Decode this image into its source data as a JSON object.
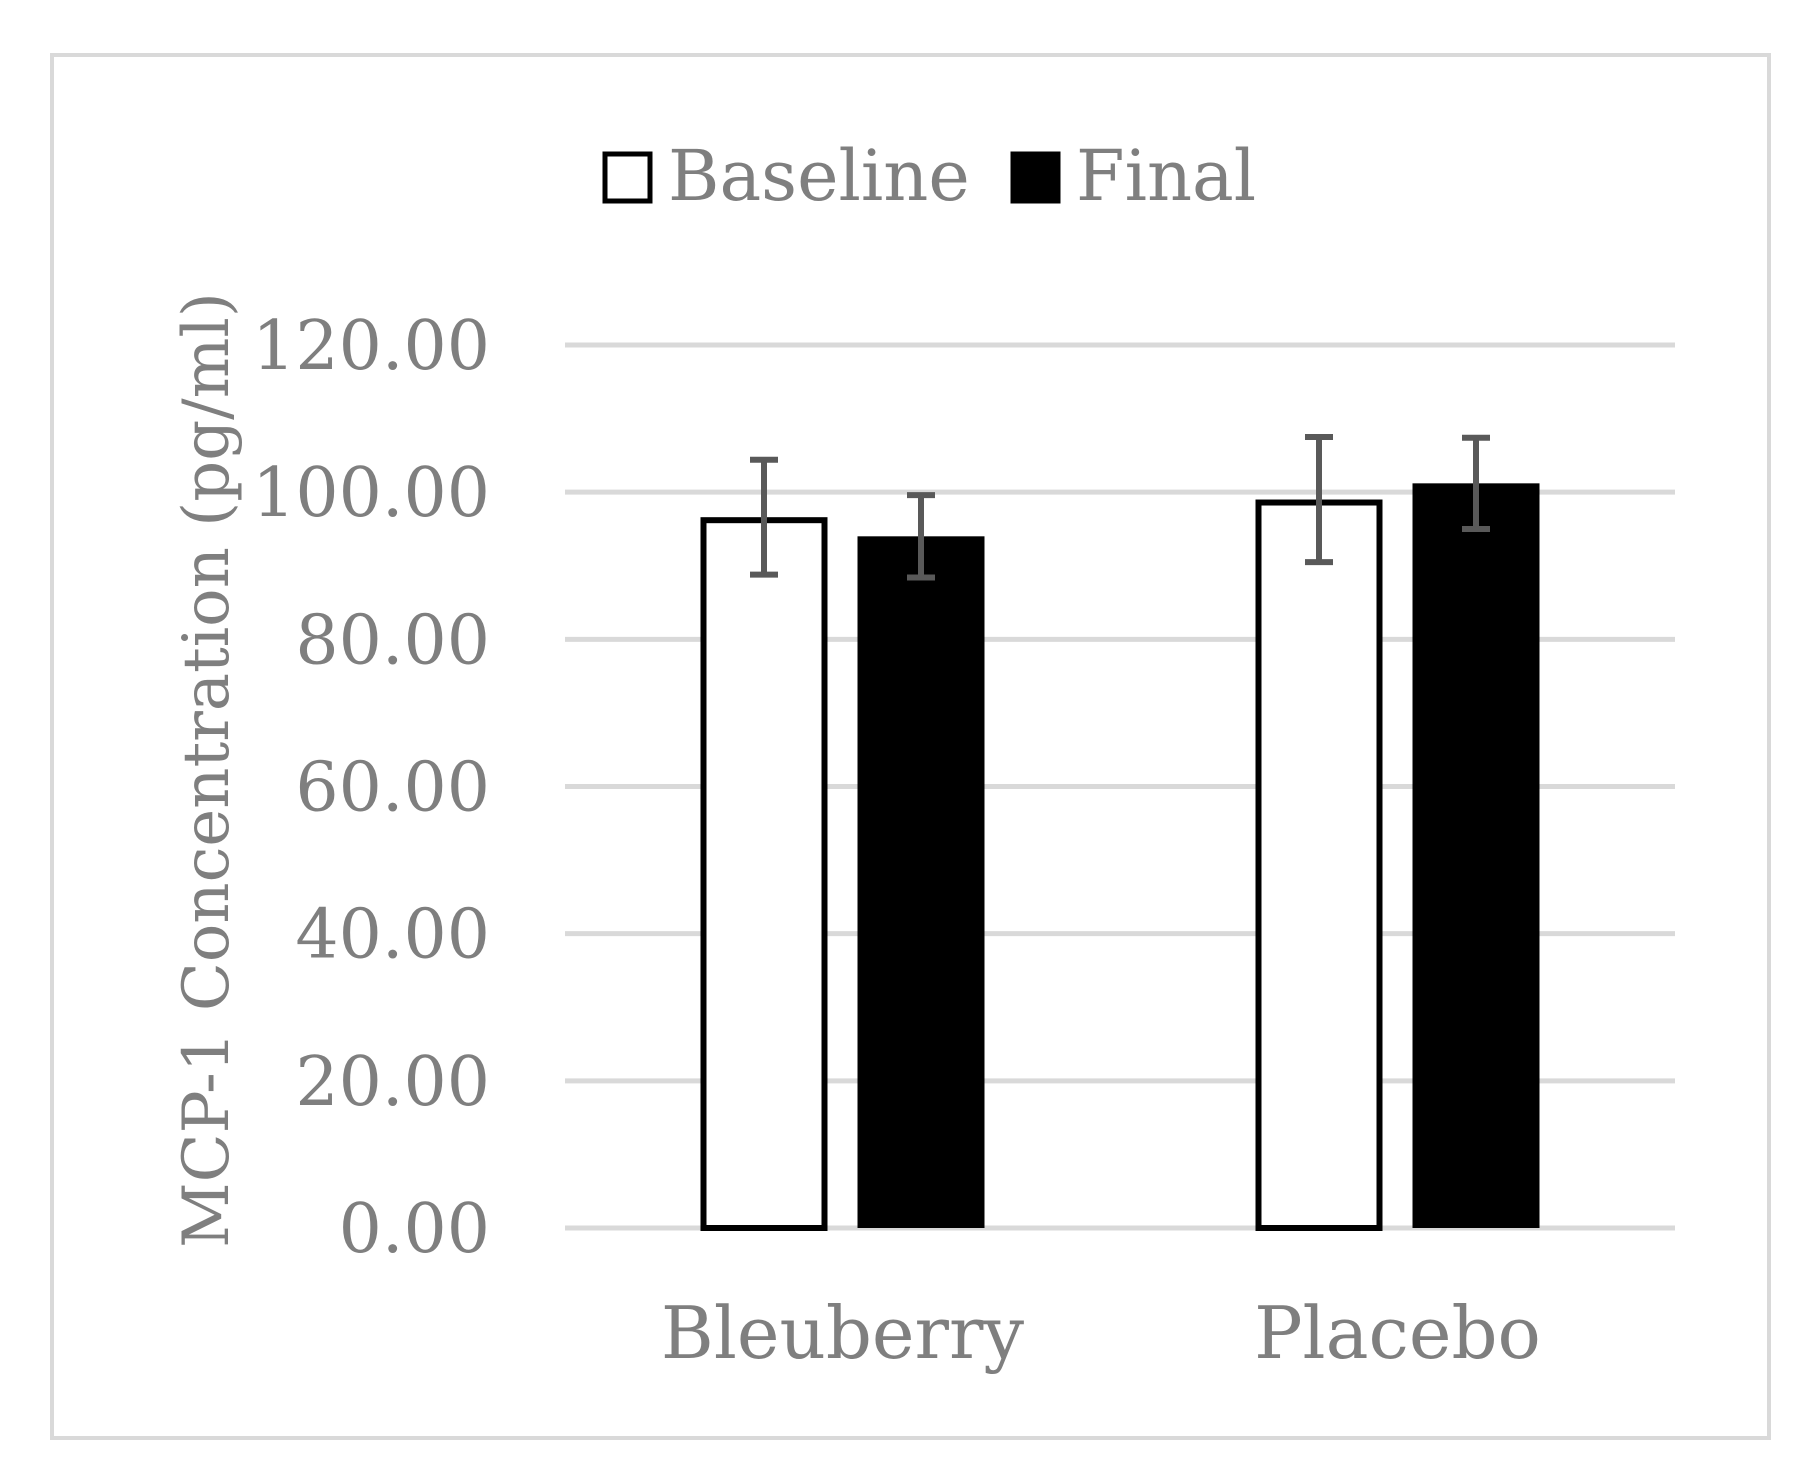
{
  "chart_data": {
    "type": "bar",
    "categories": [
      "Bleuberry",
      "Placebo"
    ],
    "series": [
      {
        "name": "Baseline",
        "values": [
          96.6,
          99.0
        ],
        "error": [
          7.8,
          8.5
        ],
        "fill": "#ffffff",
        "stroke": "#000000"
      },
      {
        "name": "Final",
        "values": [
          94.0,
          101.2
        ],
        "error": [
          5.6,
          6.2
        ],
        "fill": "#000000",
        "stroke": "#000000"
      }
    ],
    "title": "",
    "xlabel": "",
    "ylabel": "MCP-1 Concentration (pg/ml)",
    "ylim": [
      0,
      120
    ],
    "yticks": [
      0,
      20,
      40,
      60,
      80,
      100,
      120
    ],
    "ytick_labels": [
      "0.00",
      "20.00",
      "40.00",
      "60.00",
      "80.00",
      "100.00",
      "120.00"
    ],
    "grid": true,
    "legend_position": "top-center",
    "colors": {
      "gridline": "#d9d9d9",
      "text": "#7f7f7f",
      "error_bar": "#595959",
      "frame": "#d9d9d9"
    }
  }
}
